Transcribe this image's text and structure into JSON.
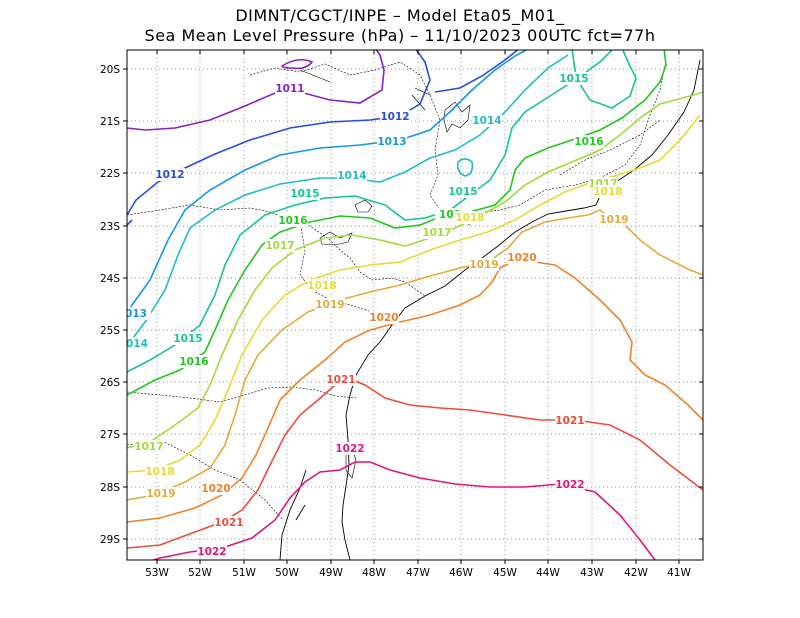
{
  "header": {
    "title_line1": "DIMNT/CGCT/INPE –  Model Eta05_M01_",
    "title_line2": "Sea Mean Level Pressure (hPa) – 11/10/2023 00UTC fct=77h"
  },
  "map": {
    "lon_range": [
      -53.7,
      -40.5
    ],
    "lat_range": [
      -29.4,
      -19.7
    ],
    "y_ticks": [
      "20S",
      "21S",
      "22S",
      "23S",
      "24S",
      "25S",
      "26S",
      "27S",
      "28S",
      "29S"
    ],
    "x_ticks": [
      "53W",
      "52W",
      "51W",
      "50W",
      "49W",
      "48W",
      "47W",
      "46W",
      "45W",
      "44W",
      "43W",
      "42W",
      "41W"
    ],
    "grid": "dotted gray"
  },
  "contours": [
    {
      "level": "1011",
      "color": "#8a1ec8",
      "labels": [
        "1011"
      ]
    },
    {
      "level": "1012",
      "color": "#2a4bdc",
      "labels": [
        "1012",
        "1012"
      ]
    },
    {
      "level": "1013",
      "color": "#1496e6",
      "labels": [
        "1013",
        "013"
      ]
    },
    {
      "level": "1014",
      "color": "#1ebec8",
      "labels": [
        "1014",
        "1014",
        "014"
      ]
    },
    {
      "level": "1015",
      "color": "#14c88c",
      "labels": [
        "1015",
        "1015",
        "1015",
        "1015"
      ]
    },
    {
      "level": "1016",
      "color": "#1ec81e",
      "labels": [
        "1016",
        "1016",
        "1016",
        "101"
      ]
    },
    {
      "level": "1017",
      "color": "#a0dc3c",
      "labels": [
        "1017",
        "1017",
        "1017",
        "1017"
      ]
    },
    {
      "level": "1018",
      "color": "#e6dc32",
      "labels": [
        "1018",
        "1018",
        "1018",
        "1018"
      ]
    },
    {
      "level": "1019",
      "color": "#e6aa3c",
      "labels": [
        "1019",
        "1019",
        "1019",
        "1019"
      ]
    },
    {
      "level": "1020",
      "color": "#f08228",
      "labels": [
        "1020",
        "1020",
        "1020"
      ]
    },
    {
      "level": "1021",
      "color": "#f04b3c",
      "labels": [
        "1021",
        "1021",
        "1021"
      ]
    },
    {
      "level": "1022",
      "color": "#e6147d",
      "labels": [
        "1022",
        "1022",
        "1022"
      ]
    }
  ]
}
